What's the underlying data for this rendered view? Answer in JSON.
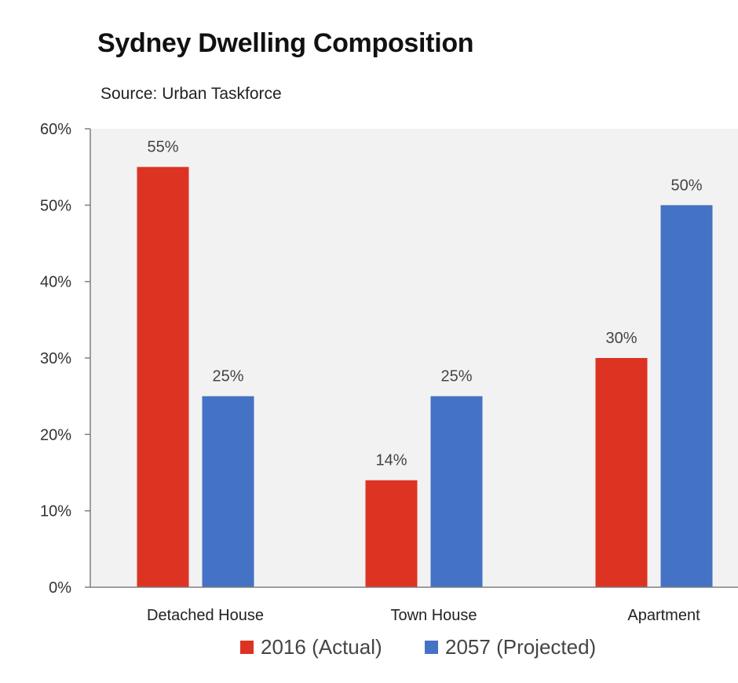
{
  "chart_data": {
    "type": "bar",
    "title": "Sydney Dwelling Composition",
    "subtitle": "Source: Urban Taskforce",
    "categories": [
      "Detached House",
      "Town House",
      "Apartment"
    ],
    "series": [
      {
        "name": "2016 (Actual)",
        "values": [
          55,
          14,
          30
        ],
        "color": "#dd3322",
        "labels": [
          "55%",
          "14%",
          "30%"
        ]
      },
      {
        "name": "2057 (Projected)",
        "values": [
          25,
          25,
          50
        ],
        "color": "#4472c4",
        "labels": [
          "25%",
          "25%",
          "50%"
        ]
      }
    ],
    "ylim": [
      0,
      60
    ],
    "yticks": [
      "0%",
      "10%",
      "20%",
      "30%",
      "40%",
      "50%",
      "60%"
    ],
    "ytick_values": [
      0,
      10,
      20,
      30,
      40,
      50,
      60
    ],
    "xlabel": "",
    "ylabel": "",
    "grid": false,
    "legend_position": "bottom",
    "plot_background": "#f2f2f2"
  }
}
